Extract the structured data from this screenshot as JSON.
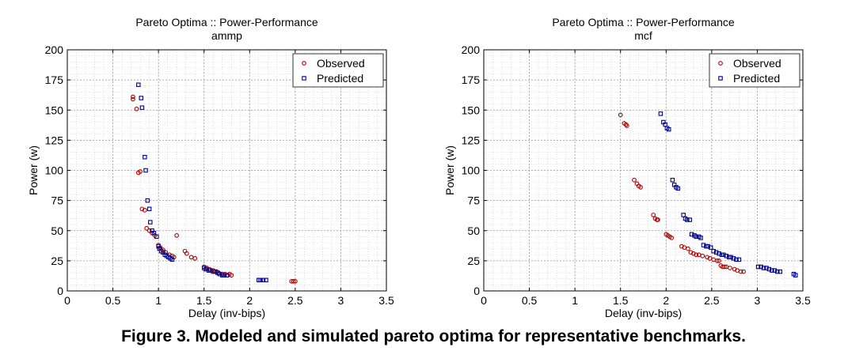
{
  "caption": "Figure 3. Modeled and simulated pareto optima for representative benchmarks.",
  "colors": {
    "observed": "#b00000",
    "predicted": "#00008f",
    "grid": "#c8c8c8"
  },
  "chart_data": [
    {
      "type": "scatter",
      "title": "Pareto Optima :: Power-Performance",
      "subtitle": "ammp",
      "xlabel": "Delay (inv-bips)",
      "ylabel": "Power (w)",
      "xlim": [
        0,
        3.5
      ],
      "ylim": [
        0,
        200
      ],
      "xticks": [
        "0",
        "0.5",
        "1",
        "1.5",
        "2",
        "2.5",
        "3",
        "3.5"
      ],
      "yticks": [
        "0",
        "25",
        "50",
        "75",
        "100",
        "125",
        "150",
        "175",
        "200"
      ],
      "grid": true,
      "legend_position": "top-right",
      "series": [
        {
          "name": "Observed",
          "marker": "circle",
          "x": [
            0.72,
            0.72,
            0.76,
            0.78,
            0.8,
            0.82,
            0.85,
            0.87,
            0.9,
            0.93,
            0.96,
            1.0,
            1.02,
            1.05,
            1.08,
            1.12,
            1.15,
            1.17,
            1.2,
            1.29,
            1.31,
            1.36,
            1.4,
            1.5,
            1.53,
            1.56,
            1.6,
            1.62,
            1.64,
            1.66,
            1.7,
            1.73,
            1.76,
            1.78,
            1.8,
            2.46,
            2.48,
            2.5
          ],
          "y": [
            161,
            159,
            151,
            98,
            99,
            68,
            67,
            52,
            50,
            48,
            46,
            38,
            36,
            34,
            32,
            30,
            29,
            28,
            46,
            33,
            31,
            28,
            27,
            20,
            19,
            18,
            17,
            16,
            16,
            15,
            14,
            14,
            13,
            14,
            13,
            8,
            8,
            8
          ]
        },
        {
          "name": "Predicted",
          "marker": "square",
          "x": [
            0.78,
            0.81,
            0.82,
            0.85,
            0.86,
            0.88,
            0.9,
            0.91,
            0.93,
            0.95,
            0.98,
            1.0,
            1.01,
            1.03,
            1.05,
            1.07,
            1.09,
            1.11,
            1.13,
            1.15,
            1.5,
            1.52,
            1.55,
            1.57,
            1.6,
            1.62,
            1.65,
            1.67,
            1.7,
            1.72,
            1.75,
            2.1,
            2.12,
            2.15,
            2.18
          ],
          "y": [
            171,
            160,
            152,
            111,
            100,
            75,
            68,
            57,
            50,
            48,
            45,
            37,
            35,
            33,
            32,
            30,
            29,
            28,
            27,
            26,
            19,
            18,
            17,
            17,
            16,
            16,
            15,
            14,
            13,
            13,
            13,
            9,
            9,
            9,
            9
          ]
        }
      ]
    },
    {
      "type": "scatter",
      "title": "Pareto Optima :: Power-Performance",
      "subtitle": "mcf",
      "xlabel": "Delay (inv-bips)",
      "ylabel": "Power (w)",
      "xlim": [
        0,
        3.5
      ],
      "ylim": [
        0,
        200
      ],
      "xticks": [
        "0",
        "0.5",
        "1",
        "1.5",
        "2",
        "2.5",
        "3",
        "3.5"
      ],
      "yticks": [
        "0",
        "25",
        "50",
        "75",
        "100",
        "125",
        "150",
        "175",
        "200"
      ],
      "grid": true,
      "legend_position": "top-right",
      "series": [
        {
          "name": "Observed",
          "marker": "circle",
          "x": [
            1.5,
            1.54,
            1.56,
            1.57,
            1.65,
            1.68,
            1.7,
            1.72,
            1.86,
            1.88,
            1.9,
            1.91,
            2.0,
            2.02,
            2.04,
            2.06,
            2.17,
            2.2,
            2.24,
            2.27,
            2.3,
            2.33,
            2.36,
            2.4,
            2.45,
            2.48,
            2.52,
            2.56,
            2.58,
            2.6,
            2.62,
            2.64,
            2.66,
            2.7,
            2.75,
            2.78,
            2.82,
            2.85
          ],
          "y": [
            146,
            139,
            138,
            137,
            92,
            89,
            87,
            86,
            63,
            60,
            59,
            59,
            47,
            46,
            45,
            44,
            37,
            36,
            35,
            32,
            31,
            30,
            30,
            29,
            28,
            27,
            26,
            25,
            25,
            21,
            20,
            20,
            20,
            19,
            18,
            17,
            16,
            16
          ]
        },
        {
          "name": "Predicted",
          "marker": "square",
          "x": [
            1.94,
            1.97,
            1.99,
            2.01,
            2.03,
            2.07,
            2.09,
            2.11,
            2.13,
            2.19,
            2.21,
            2.23,
            2.26,
            2.28,
            2.31,
            2.33,
            2.36,
            2.38,
            2.41,
            2.44,
            2.46,
            2.49,
            2.52,
            2.55,
            2.58,
            2.61,
            2.63,
            2.66,
            2.69,
            2.71,
            2.74,
            2.77,
            2.8,
            3.01,
            3.04,
            3.07,
            3.1,
            3.13,
            3.16,
            3.19,
            3.22,
            3.25,
            3.4,
            3.42
          ],
          "y": [
            147,
            140,
            138,
            135,
            134,
            92,
            88,
            86,
            85,
            63,
            60,
            59,
            59,
            47,
            46,
            45,
            45,
            44,
            38,
            37,
            37,
            36,
            33,
            32,
            31,
            30,
            30,
            29,
            28,
            28,
            27,
            26,
            26,
            20,
            20,
            19,
            19,
            18,
            17,
            17,
            16,
            16,
            14,
            13
          ]
        }
      ]
    }
  ]
}
